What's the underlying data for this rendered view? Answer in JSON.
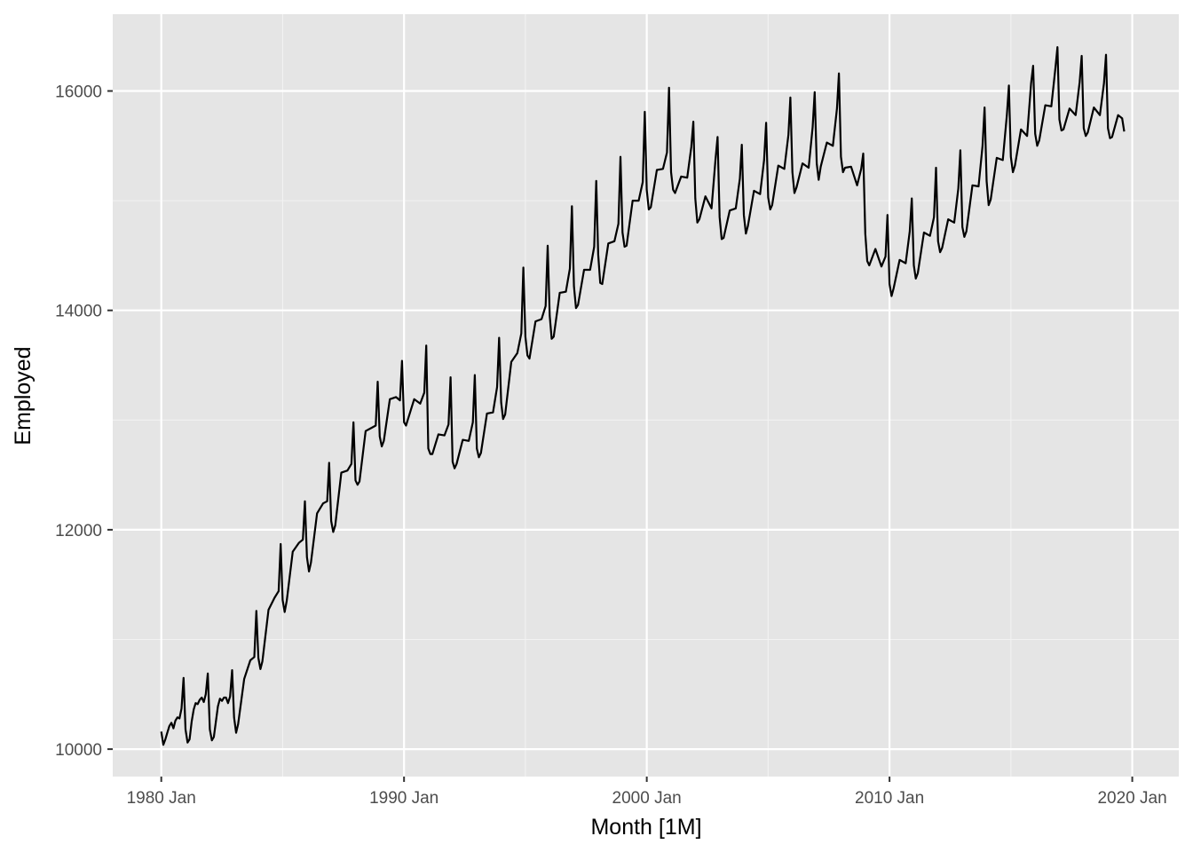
{
  "chart_data": {
    "type": "line",
    "title": "",
    "xlabel": "Month [1M]",
    "ylabel": "Employed",
    "xlim": [
      "1978-01",
      "2021-12"
    ],
    "ylim": [
      9750,
      16700
    ],
    "x_ticks": [
      {
        "value": "1980-01",
        "label": "1980 Jan"
      },
      {
        "value": "1990-01",
        "label": "1990 Jan"
      },
      {
        "value": "2000-01",
        "label": "2000 Jan"
      },
      {
        "value": "2010-01",
        "label": "2010 Jan"
      },
      {
        "value": "2020-01",
        "label": "2020 Jan"
      }
    ],
    "y_ticks": [
      {
        "value": 10000,
        "label": "10000"
      },
      {
        "value": 12000,
        "label": "12000"
      },
      {
        "value": 14000,
        "label": "14000"
      },
      {
        "value": 16000,
        "label": "16000"
      }
    ],
    "grid": true,
    "background": "#e5e5e5",
    "line_color": "#000000",
    "series": [
      {
        "x": [
          "1980-01",
          "1980-02",
          "1980-03",
          "1980-04",
          "1980-05",
          "1980-06",
          "1980-07",
          "1980-08",
          "1980-09",
          "1980-10",
          "1980-11",
          "1980-12",
          "1981-01",
          "1981-02",
          "1981-03",
          "1981-04",
          "1981-05",
          "1981-06",
          "1981-07",
          "1981-08",
          "1981-09",
          "1981-10",
          "1981-11",
          "1981-12",
          "1982-01",
          "1982-02",
          "1982-03",
          "1982-04",
          "1982-05",
          "1982-06",
          "1982-07",
          "1982-08",
          "1982-09",
          "1982-10",
          "1982-11",
          "1982-12",
          "1983-01",
          "1983-02",
          "1983-03",
          "1983-06",
          "1983-09",
          "1983-11",
          "1983-12",
          "1984-01",
          "1984-02",
          "1984-03",
          "1984-06",
          "1984-09",
          "1984-11",
          "1984-12",
          "1985-01",
          "1985-02",
          "1985-03",
          "1985-06",
          "1985-09",
          "1985-11",
          "1985-12",
          "1986-01",
          "1986-02",
          "1986-03",
          "1986-06",
          "1986-09",
          "1986-11",
          "1986-12",
          "1987-01",
          "1987-02",
          "1987-03",
          "1987-06",
          "1987-09",
          "1987-11",
          "1987-12",
          "1988-01",
          "1988-02",
          "1988-03",
          "1988-06",
          "1988-09",
          "1988-11",
          "1988-12",
          "1989-01",
          "1989-02",
          "1989-03",
          "1989-06",
          "1989-09",
          "1989-11",
          "1989-12",
          "1990-01",
          "1990-02",
          "1990-03",
          "1990-06",
          "1990-09",
          "1990-11",
          "1990-12",
          "1991-01",
          "1991-02",
          "1991-03",
          "1991-06",
          "1991-09",
          "1991-11",
          "1991-12",
          "1992-01",
          "1992-02",
          "1992-03",
          "1992-06",
          "1992-09",
          "1992-11",
          "1992-12",
          "1993-01",
          "1993-02",
          "1993-03",
          "1993-06",
          "1993-09",
          "1993-11",
          "1993-12",
          "1994-01",
          "1994-02",
          "1994-03",
          "1994-06",
          "1994-09",
          "1994-11",
          "1994-12",
          "1995-01",
          "1995-02",
          "1995-03",
          "1995-06",
          "1995-09",
          "1995-11",
          "1995-12",
          "1996-01",
          "1996-02",
          "1996-03",
          "1996-06",
          "1996-09",
          "1996-11",
          "1996-12",
          "1997-01",
          "1997-02",
          "1997-03",
          "1997-06",
          "1997-09",
          "1997-11",
          "1997-12",
          "1998-01",
          "1998-02",
          "1998-03",
          "1998-06",
          "1998-09",
          "1998-11",
          "1998-12",
          "1999-01",
          "1999-02",
          "1999-03",
          "1999-06",
          "1999-09",
          "1999-11",
          "1999-12",
          "2000-01",
          "2000-02",
          "2000-03",
          "2000-06",
          "2000-09",
          "2000-11",
          "2000-12",
          "2001-01",
          "2001-02",
          "2001-03",
          "2001-06",
          "2001-09",
          "2001-11",
          "2001-12",
          "2002-01",
          "2002-02",
          "2002-03",
          "2002-06",
          "2002-09",
          "2002-11",
          "2002-12",
          "2003-01",
          "2003-02",
          "2003-03",
          "2003-06",
          "2003-09",
          "2003-11",
          "2003-12",
          "2004-01",
          "2004-02",
          "2004-03",
          "2004-06",
          "2004-09",
          "2004-11",
          "2004-12",
          "2005-01",
          "2005-02",
          "2005-03",
          "2005-06",
          "2005-09",
          "2005-11",
          "2005-12",
          "2006-01",
          "2006-02",
          "2006-03",
          "2006-06",
          "2006-09",
          "2006-11",
          "2006-12",
          "2007-01",
          "2007-02",
          "2007-03",
          "2007-06",
          "2007-09",
          "2007-11",
          "2007-12",
          "2008-01",
          "2008-02",
          "2008-03",
          "2008-06",
          "2008-09",
          "2008-11",
          "2008-12",
          "2009-01",
          "2009-02",
          "2009-03",
          "2009-06",
          "2009-09",
          "2009-11",
          "2009-12",
          "2010-01",
          "2010-02",
          "2010-03",
          "2010-06",
          "2010-09",
          "2010-11",
          "2010-12",
          "2011-01",
          "2011-02",
          "2011-03",
          "2011-06",
          "2011-09",
          "2011-11",
          "2011-12",
          "2012-01",
          "2012-02",
          "2012-03",
          "2012-06",
          "2012-09",
          "2012-11",
          "2012-12",
          "2013-01",
          "2013-02",
          "2013-03",
          "2013-06",
          "2013-09",
          "2013-11",
          "2013-12",
          "2014-01",
          "2014-02",
          "2014-03",
          "2014-06",
          "2014-09",
          "2014-11",
          "2014-12",
          "2015-01",
          "2015-02",
          "2015-03",
          "2015-06",
          "2015-09",
          "2015-11",
          "2015-12",
          "2016-01",
          "2016-02",
          "2016-03",
          "2016-06",
          "2016-09",
          "2016-11",
          "2016-12",
          "2017-01",
          "2017-02",
          "2017-03",
          "2017-06",
          "2017-09",
          "2017-11",
          "2017-12",
          "2018-01",
          "2018-02",
          "2018-03",
          "2018-06",
          "2018-09",
          "2018-11",
          "2018-12",
          "2019-01",
          "2019-02",
          "2019-03",
          "2019-06",
          "2019-08",
          "2019-09"
        ],
        "values": [
          10160,
          10040,
          10090,
          10150,
          10210,
          10240,
          10190,
          10260,
          10290,
          10280,
          10370,
          10650,
          10180,
          10060,
          10090,
          10250,
          10360,
          10420,
          10410,
          10450,
          10470,
          10430,
          10500,
          10690,
          10180,
          10080,
          10110,
          10250,
          10390,
          10460,
          10440,
          10470,
          10470,
          10420,
          10480,
          10720,
          10290,
          10150,
          10230,
          10640,
          10810,
          10840,
          11260,
          10830,
          10730,
          10800,
          11270,
          11380,
          11440,
          11870,
          11360,
          11250,
          11350,
          11800,
          11880,
          11910,
          12260,
          11750,
          11620,
          11700,
          12150,
          12240,
          12260,
          12610,
          12080,
          11980,
          12040,
          12520,
          12540,
          12600,
          12980,
          12450,
          12410,
          12440,
          12900,
          12930,
          12950,
          13350,
          12850,
          12760,
          12810,
          13190,
          13210,
          13180,
          13540,
          12980,
          12950,
          13010,
          13190,
          13150,
          13250,
          13680,
          12740,
          12690,
          12690,
          12870,
          12860,
          12960,
          13390,
          12620,
          12560,
          12600,
          12820,
          12810,
          12980,
          13410,
          12740,
          12660,
          12700,
          13060,
          13070,
          13300,
          13750,
          13160,
          13010,
          13050,
          13530,
          13610,
          13790,
          14390,
          13760,
          13590,
          13560,
          13900,
          13920,
          14040,
          14590,
          13950,
          13740,
          13760,
          14160,
          14170,
          14380,
          14950,
          14220,
          14020,
          14050,
          14370,
          14370,
          14580,
          15180,
          14510,
          14250,
          14240,
          14610,
          14630,
          14790,
          15400,
          14710,
          14580,
          14590,
          15000,
          15000,
          15170,
          15810,
          15100,
          14920,
          14940,
          15280,
          15290,
          15440,
          16030,
          15260,
          15100,
          15070,
          15220,
          15210,
          15490,
          15720,
          15020,
          14800,
          14830,
          15040,
          14930,
          15380,
          15580,
          14850,
          14650,
          14660,
          14910,
          14930,
          15200,
          15510,
          14870,
          14700,
          14770,
          15090,
          15060,
          15370,
          15710,
          15030,
          14920,
          14960,
          15320,
          15290,
          15600,
          15940,
          15260,
          15070,
          15120,
          15340,
          15300,
          15670,
          15990,
          15340,
          15190,
          15310,
          15530,
          15500,
          15840,
          16160,
          15400,
          15260,
          15300,
          15310,
          15140,
          15290,
          15430,
          14700,
          14450,
          14410,
          14560,
          14400,
          14490,
          14870,
          14240,
          14130,
          14200,
          14460,
          14430,
          14720,
          15020,
          14410,
          14290,
          14340,
          14710,
          14680,
          14850,
          15300,
          14630,
          14530,
          14570,
          14830,
          14800,
          15110,
          15460,
          14760,
          14670,
          14720,
          15140,
          15130,
          15500,
          15850,
          15180,
          14960,
          15010,
          15390,
          15370,
          15780,
          16050,
          15400,
          15260,
          15320,
          15650,
          15590,
          16070,
          16230,
          15610,
          15500,
          15550,
          15870,
          15860,
          16210,
          16400,
          15740,
          15640,
          15650,
          15840,
          15780,
          16080,
          16320,
          15660,
          15590,
          15620,
          15850,
          15780,
          16070,
          16330,
          15660,
          15570,
          15580,
          15780,
          15750,
          15630
        ]
      }
    ]
  }
}
